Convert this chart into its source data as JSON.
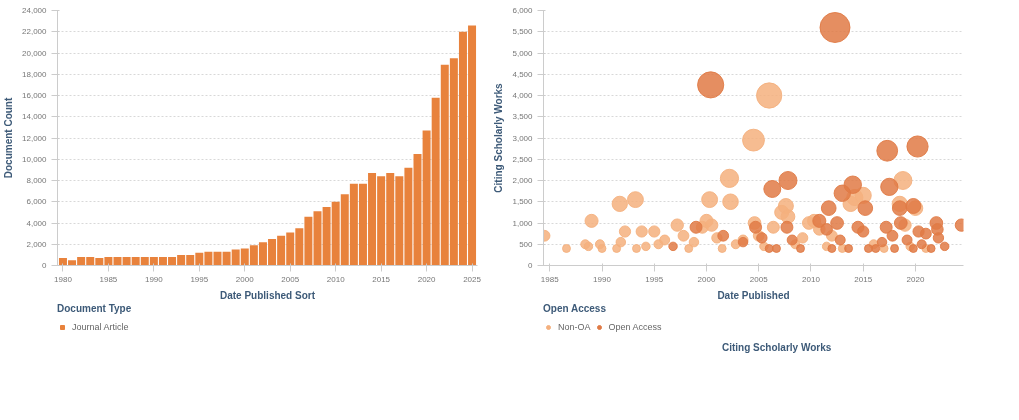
{
  "chart_data": [
    {
      "type": "bar",
      "xlabel": "Date Published Sort",
      "ylabel": "Document Count",
      "legend_title": "Document Type",
      "legend": "bottom",
      "grid": "y",
      "x": [
        1980,
        1981,
        1982,
        1983,
        1984,
        1985,
        1986,
        1987,
        1988,
        1989,
        1990,
        1991,
        1992,
        1993,
        1994,
        1995,
        1996,
        1997,
        1998,
        1999,
        2000,
        2001,
        2002,
        2003,
        2004,
        2005,
        2006,
        2007,
        2008,
        2009,
        2010,
        2011,
        2012,
        2013,
        2014,
        2015,
        2016,
        2017,
        2018,
        2019,
        2020,
        2021,
        2022,
        2023,
        2024,
        2025
      ],
      "series": [
        {
          "name": "Journal Article",
          "color": "#e8823c",
          "values": [
            700,
            500,
            800,
            800,
            700,
            800,
            800,
            800,
            800,
            800,
            800,
            800,
            800,
            1000,
            1000,
            1200,
            1300,
            1300,
            1300,
            1500,
            1600,
            1900,
            2200,
            2500,
            2800,
            3100,
            3500,
            4600,
            5100,
            5500,
            6000,
            6700,
            7700,
            7700,
            8700,
            8400,
            8700,
            8400,
            9200,
            10500,
            12700,
            15800,
            18900,
            19500,
            22000,
            22600
          ]
        }
      ],
      "xlim": [
        1979.4,
        2025.6
      ],
      "xticks": [
        1980,
        1985,
        1990,
        1995,
        2000,
        2005,
        2010,
        2015,
        2020,
        2025
      ],
      "ylim": [
        0,
        24000
      ],
      "yticks": [
        {
          "value": 0,
          "label": "0"
        },
        {
          "value": 2000,
          "label": "2,000"
        },
        {
          "value": 4000,
          "label": "4,000"
        },
        {
          "value": 6000,
          "label": "6,000"
        },
        {
          "value": 8000,
          "label": "8,000"
        },
        {
          "value": 10000,
          "label": "10,000"
        },
        {
          "value": 12000,
          "label": "12,000"
        },
        {
          "value": 14000,
          "label": "14,000"
        },
        {
          "value": 16000,
          "label": "16,000"
        },
        {
          "value": 18000,
          "label": "18,000"
        },
        {
          "value": 20000,
          "label": "20,000"
        },
        {
          "value": 22000,
          "label": "22,000"
        },
        {
          "value": 24000,
          "label": "24,000"
        }
      ]
    },
    {
      "type": "bubble",
      "xlabel": "Date Published",
      "ylabel": "Citing Scholarly Works",
      "legend_title": "Open Access",
      "legend": "bottom",
      "grid": "y",
      "marker": "circle",
      "annotations": [
        "Citing Scholarly Works"
      ],
      "series": [
        {
          "name": "Non-OA",
          "color": "#f4b07e",
          "x": [
            1984.5,
            1986.6,
            1988.4,
            1988.7,
            1989.0,
            1989.8,
            1990.0,
            1991.4,
            1991.7,
            1991.8,
            1992.2,
            1993.2,
            1993.3,
            1993.8,
            1994.2,
            1995.0,
            1995.4,
            1996.0,
            1997.2,
            1997.8,
            1998.3,
            1998.8,
            1999.6,
            2000.0,
            2000.3,
            2000.5,
            2001.0,
            2001.5,
            2002.2,
            2002.3,
            2002.8,
            2003.5,
            2004.5,
            2004.6,
            2005.0,
            2005.5,
            2006.0,
            2006.4,
            2007.2,
            2007.6,
            2007.8,
            2008.5,
            2009.2,
            2009.8,
            2010.3,
            2010.8,
            2011.5,
            2012.0,
            2013.0,
            2013.8,
            2014.2,
            2015.0,
            2016.0,
            2017.0,
            2018.5,
            2018.8,
            2019.0,
            2019.5,
            2020.0,
            2021.0
          ],
          "values": [
            700,
            400,
            500,
            450,
            1050,
            500,
            400,
            400,
            1450,
            550,
            800,
            1550,
            400,
            800,
            450,
            800,
            500,
            600,
            950,
            700,
            400,
            550,
            900,
            1050,
            1550,
            950,
            650,
            400,
            2050,
            1500,
            500,
            600,
            2950,
            1000,
            700,
            450,
            4000,
            900,
            1250,
            1400,
            1150,
            500,
            650,
            1000,
            1050,
            850,
            450,
            700,
            400,
            1450,
            1600,
            1650,
            500,
            400,
            1450,
            2000,
            950,
            450,
            1350,
            400
          ],
          "sizes": [
            0.13,
            0.07,
            0.09,
            0.08,
            0.19,
            0.09,
            0.07,
            0.07,
            0.26,
            0.1,
            0.14,
            0.28,
            0.07,
            0.14,
            0.08,
            0.14,
            0.09,
            0.11,
            0.17,
            0.13,
            0.07,
            0.1,
            0.16,
            0.19,
            0.28,
            0.17,
            0.12,
            0.07,
            0.37,
            0.27,
            0.09,
            0.11,
            0.53,
            0.18,
            0.13,
            0.08,
            0.71,
            0.16,
            0.22,
            0.25,
            0.21,
            0.09,
            0.12,
            0.18,
            0.19,
            0.15,
            0.08,
            0.13,
            0.07,
            0.26,
            0.29,
            0.29,
            0.09,
            0.07,
            0.26,
            0.36,
            0.17,
            0.08,
            0.24,
            0.07
          ]
        },
        {
          "name": "Open Access",
          "color": "#e07a45",
          "x": [
            2000.4,
            2012.3,
            2017.3,
            2020.2,
            2007.8,
            2006.3,
            2017.5,
            2014.0,
            2013.0,
            2015.2,
            2011.7,
            2018.5,
            2019.8,
            2012.5,
            2022.0,
            2024.4,
            1996.8,
            1999.0,
            2001.6,
            2003.5,
            2004.7,
            2005.3,
            2006.0,
            2006.7,
            2007.7,
            2008.2,
            2009.0,
            2010.8,
            2011.5,
            2012.0,
            2012.8,
            2013.6,
            2014.5,
            2015.0,
            2015.5,
            2016.2,
            2016.8,
            2017.2,
            2017.8,
            2018.0,
            2018.6,
            2019.2,
            2019.8,
            2020.3,
            2020.6,
            2021.0,
            2021.5,
            2022.1,
            2022.2,
            2022.8
          ],
          "values": [
            4250,
            5600,
            2700,
            2800,
            2000,
            1800,
            1850,
            1900,
            1700,
            1350,
            1350,
            1350,
            1400,
            1000,
            1000,
            950,
            450,
            900,
            700,
            550,
            900,
            650,
            400,
            400,
            900,
            600,
            400,
            1050,
            850,
            400,
            600,
            400,
            900,
            800,
            400,
            400,
            550,
            900,
            700,
            400,
            1000,
            600,
            400,
            800,
            500,
            750,
            400,
            850,
            650,
            450
          ],
          "sizes": [
            0.76,
            1,
            0.48,
            0.5,
            0.36,
            0.32,
            0.33,
            0.34,
            0.3,
            0.24,
            0.24,
            0.24,
            0.25,
            0.18,
            0.18,
            0.17,
            0.08,
            0.16,
            0.13,
            0.1,
            0.16,
            0.12,
            0.07,
            0.07,
            0.16,
            0.11,
            0.07,
            0.19,
            0.15,
            0.07,
            0.11,
            0.07,
            0.16,
            0.14,
            0.07,
            0.07,
            0.1,
            0.16,
            0.13,
            0.07,
            0.18,
            0.11,
            0.07,
            0.14,
            0.09,
            0.13,
            0.07,
            0.15,
            0.12,
            0.08
          ]
        }
      ],
      "xlim": [
        1984.4,
        2024.6
      ],
      "xticks": [
        1985,
        1990,
        1995,
        2000,
        2005,
        2010,
        2015,
        2020
      ],
      "ylim": [
        0,
        6000
      ],
      "yticks": [
        {
          "value": 0,
          "label": "0"
        },
        {
          "value": 500,
          "label": "500"
        },
        {
          "value": 1000,
          "label": "1,000"
        },
        {
          "value": 1500,
          "label": "1,500"
        },
        {
          "value": 2000,
          "label": "2,000"
        },
        {
          "value": 2500,
          "label": "2,500"
        },
        {
          "value": 3000,
          "label": "3,000"
        },
        {
          "value": 3500,
          "label": "3,500"
        },
        {
          "value": 4000,
          "label": "4,000"
        },
        {
          "value": 4500,
          "label": "4,500"
        },
        {
          "value": 5000,
          "label": "5,000"
        },
        {
          "value": 5500,
          "label": "5,500"
        },
        {
          "value": 6000,
          "label": "6,000"
        }
      ]
    }
  ]
}
